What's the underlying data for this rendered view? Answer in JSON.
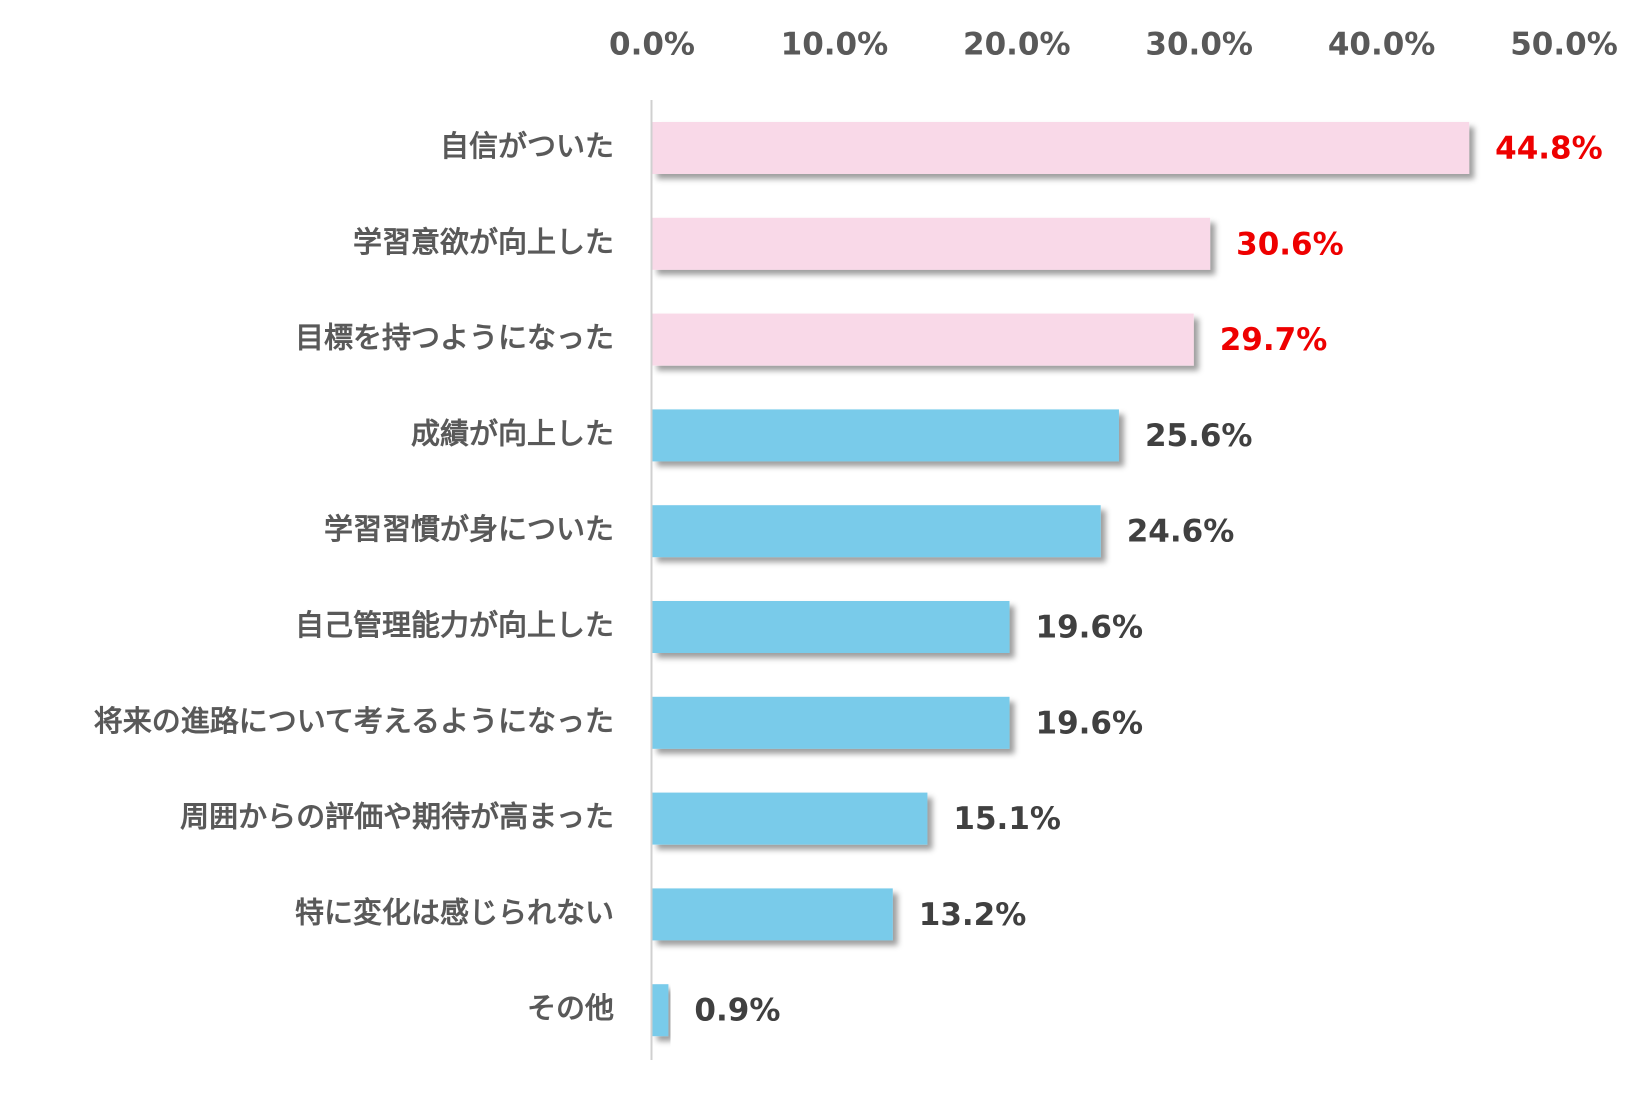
{
  "chart_data": {
    "type": "bar",
    "orientation": "horizontal",
    "title": "",
    "xlabel": "",
    "ylabel": "",
    "xlim": [
      0,
      50
    ],
    "x_ticks": [
      "0.0%",
      "10.0%",
      "20.0%",
      "30.0%",
      "40.0%",
      "50.0%"
    ],
    "x_tick_values": [
      0,
      10,
      20,
      30,
      40,
      50
    ],
    "x_axis_position": "top",
    "grid": false,
    "legend": "none",
    "categories": [
      "自信がついた",
      "学習意欲が向上した",
      "目標を持つようになった",
      "成績が向上した",
      "学習習慣が身についた",
      "自己管理能力が向上した",
      "将来の進路について考えるようになった",
      "周囲からの評価や期待が高まった",
      "特に変化は感じられない",
      "その他"
    ],
    "values": [
      44.8,
      30.6,
      29.7,
      25.6,
      24.6,
      19.6,
      19.6,
      15.1,
      13.2,
      0.9
    ],
    "value_labels": [
      "44.8%",
      "30.6%",
      "29.7%",
      "25.6%",
      "24.6%",
      "19.6%",
      "19.6%",
      "15.1%",
      "13.2%",
      "0.9%"
    ],
    "highlighted_count": 3,
    "colors": {
      "highlight_bar": "#f9d9e8",
      "normal_bar": "#79cbea",
      "highlight_label": "#ee0000",
      "normal_label": "#404040",
      "tick_label": "#595959",
      "category_label": "#595959",
      "axis_line": "#d0d0d0"
    }
  }
}
